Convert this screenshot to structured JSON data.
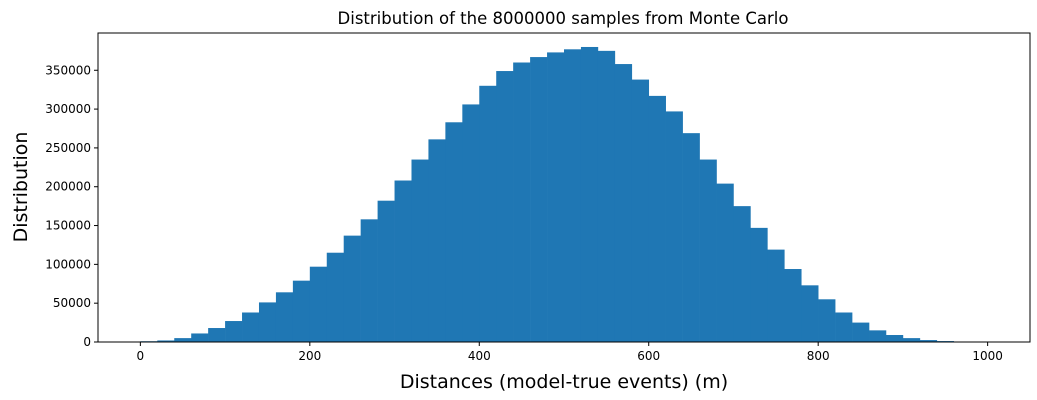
{
  "chart_data": {
    "type": "bar",
    "title": "Distribution of the 8000000 samples from Monte Carlo",
    "xlabel": "Distances (model-true events) (m)",
    "ylabel": "Distribution",
    "xlim": [
      -50,
      1050
    ],
    "ylim": [
      0,
      398000
    ],
    "xticks": [
      0,
      200,
      400,
      600,
      800,
      1000
    ],
    "yticks": [
      0,
      50000,
      100000,
      150000,
      200000,
      250000,
      300000,
      350000
    ],
    "bin_edges": [
      0,
      20,
      40,
      60,
      80,
      100,
      120,
      140,
      160,
      180,
      200,
      220,
      240,
      260,
      280,
      300,
      320,
      340,
      360,
      380,
      400,
      420,
      440,
      460,
      480,
      500,
      520,
      540,
      560,
      580,
      600,
      620,
      640,
      660,
      680,
      700,
      720,
      740,
      760,
      780,
      800,
      820,
      840,
      860,
      880,
      900,
      920,
      940,
      960,
      980,
      1000
    ],
    "values": [
      1000,
      2000,
      5000,
      11000,
      18000,
      27000,
      38000,
      51000,
      64000,
      79000,
      97000,
      115000,
      137000,
      158000,
      182000,
      208000,
      235000,
      261000,
      283000,
      306000,
      330000,
      349000,
      360000,
      367000,
      373000,
      377000,
      380000,
      375000,
      358000,
      338000,
      317000,
      297000,
      269000,
      235000,
      204000,
      175000,
      147000,
      119000,
      94000,
      73000,
      55000,
      38000,
      25000,
      15000,
      9000,
      5000,
      2500,
      1200,
      500,
      200
    ],
    "bar_color": "#1f77b4",
    "grid": false
  }
}
